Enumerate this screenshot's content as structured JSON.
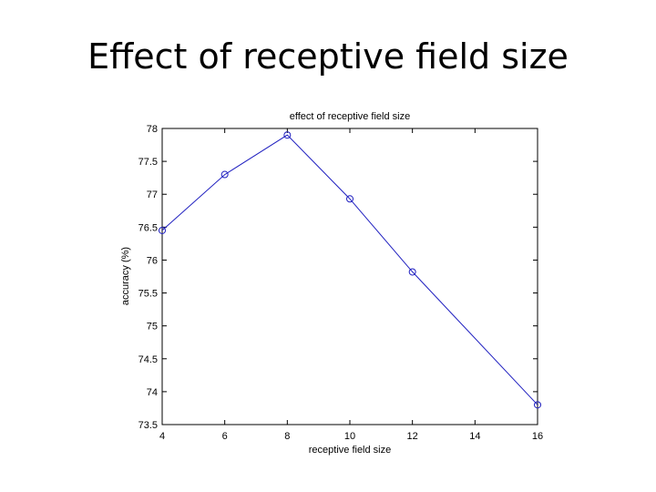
{
  "slide": {
    "title": "Effect of receptive field size"
  },
  "chart_data": {
    "type": "line",
    "title": "effect of receptive field size",
    "xlabel": "receptive field size",
    "ylabel": "accuracy (%)",
    "x": [
      4,
      6,
      8,
      10,
      12,
      16
    ],
    "y": [
      76.45,
      77.3,
      77.9,
      76.93,
      75.82,
      73.8
    ],
    "xlim": [
      4,
      16
    ],
    "ylim": [
      73.5,
      78
    ],
    "xticks": [
      "4",
      "6",
      "8",
      "10",
      "12",
      "14",
      "16"
    ],
    "yticks": [
      "73.5",
      "74",
      "74.5",
      "75",
      "75.5",
      "76",
      "76.5",
      "77",
      "77.5",
      "78"
    ],
    "series_color": "#2020c0",
    "marker": "circle",
    "grid": false
  }
}
